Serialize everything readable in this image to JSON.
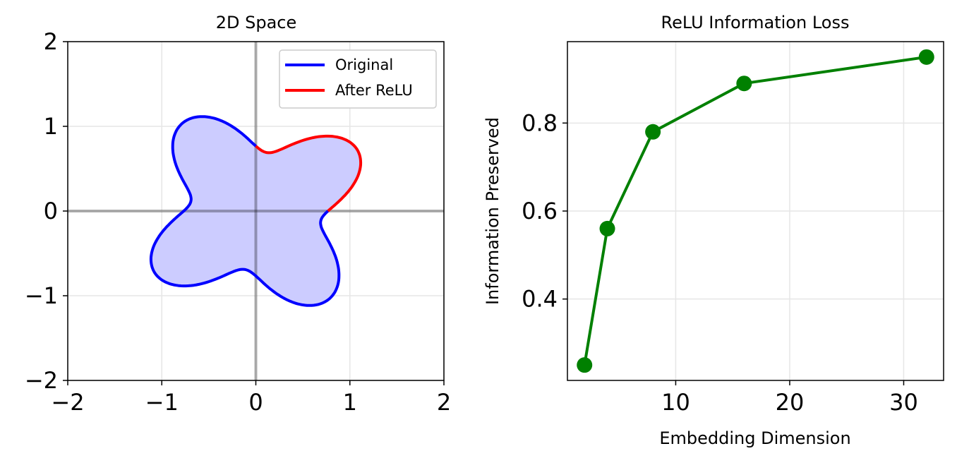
{
  "chart_data": [
    {
      "type": "line",
      "title": "2D Space",
      "xlabel": "",
      "ylabel": "",
      "xlim": [
        -2,
        2
      ],
      "ylim": [
        -2,
        2
      ],
      "xticks": [
        -2,
        -1,
        0,
        1,
        2
      ],
      "yticks": [
        -2,
        -1,
        0,
        1,
        2
      ],
      "xtick_labels": [
        "−2",
        "−1",
        "0",
        "1",
        "2"
      ],
      "ytick_labels": [
        "−2",
        "−1",
        "0",
        "1",
        "2"
      ],
      "grid": true,
      "legend_position": "top-right",
      "shape": {
        "description_curve": "r = 1 + 0.3*cos(4*(theta - 0.615)) rotated four-lobed closed curve",
        "fill_color": "#ccccff"
      },
      "series": [
        {
          "name": "Original",
          "color": "#0000ff",
          "x": [
            1.15,
            1.02,
            0.78,
            0.62,
            0.66,
            0.58,
            0.38,
            0.12,
            -0.02,
            -0.18,
            -0.28,
            -0.34,
            -0.52,
            -0.8,
            -1.08,
            -1.22,
            -1.14,
            -0.92,
            -0.68,
            -0.64,
            -0.7,
            -0.62,
            -0.42,
            -0.22,
            -0.08,
            0.02
          ],
          "y": [
            0.18,
            0.02,
            -0.18,
            -0.36,
            -0.62,
            -0.98,
            -1.22,
            -1.16,
            -1.0,
            -0.82,
            -0.66,
            -0.64,
            -0.68,
            -0.72,
            -0.58,
            -0.38,
            -0.14,
            0.02,
            0.24,
            0.48,
            0.8,
            1.08,
            1.22,
            1.16,
            1.04,
            0.96
          ]
        },
        {
          "name": "After ReLU",
          "color": "#ff0000",
          "x": [
            0.0,
            0.12,
            0.28,
            0.42,
            0.62,
            0.82,
            1.0,
            1.14,
            1.22,
            1.2,
            1.15
          ],
          "y": [
            0.96,
            0.82,
            0.66,
            0.64,
            0.7,
            0.72,
            0.66,
            0.54,
            0.38,
            0.26,
            0.18
          ]
        }
      ]
    },
    {
      "type": "line",
      "title": "ReLU Information Loss",
      "xlabel": "Embedding Dimension",
      "ylabel": "Information Preserved",
      "xlim": [
        0.5,
        33.5
      ],
      "ylim": [
        0.215,
        0.985
      ],
      "xticks": [
        10,
        20,
        30
      ],
      "yticks": [
        0.4,
        0.6,
        0.8
      ],
      "xtick_labels": [
        "10",
        "20",
        "30"
      ],
      "ytick_labels": [
        "0.4",
        "0.6",
        "0.8"
      ],
      "grid": true,
      "series": [
        {
          "color": "#008000",
          "x": [
            2,
            4,
            8,
            16,
            32
          ],
          "y": [
            0.25,
            0.56,
            0.78,
            0.89,
            0.95
          ]
        }
      ]
    }
  ]
}
